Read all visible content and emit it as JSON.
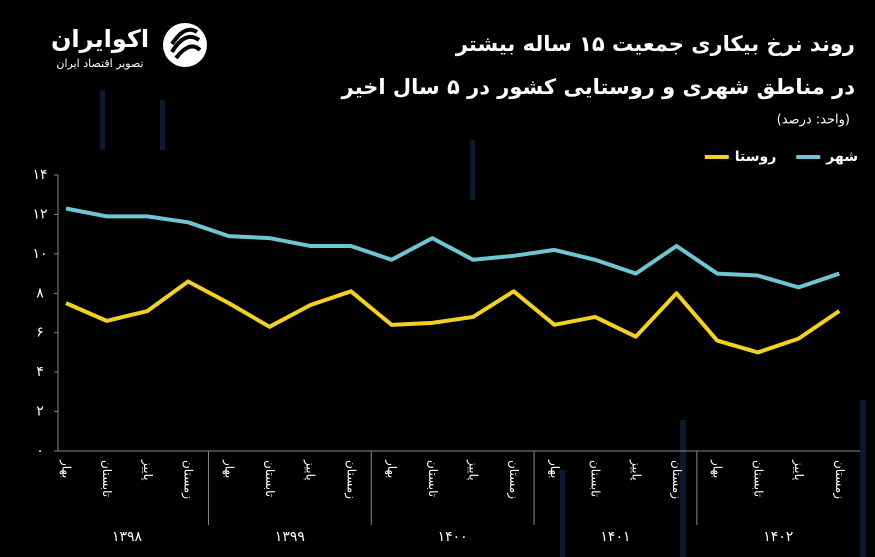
{
  "brand": {
    "name": "اکوایران",
    "tagline": "تصویر اقتصاد ایران"
  },
  "chart_data": {
    "type": "line",
    "title": [
      "روند نرخ بیکاری جمعیت ۱۵ ساله بیشتر",
      "در مناطق شهری و روستایی کشور در ۵ سال اخیر"
    ],
    "unit_note": "(واحد: درصد)",
    "categories": [
      "بهار",
      "تابستان",
      "پاییز",
      "زمستان",
      "بهار",
      "تابستان",
      "پاییز",
      "زمستان",
      "بهار",
      "تابستان",
      "پاییز",
      "زمستان",
      "بهار",
      "تابستان",
      "پاییز",
      "زمستان",
      "بهار",
      "تابستان",
      "پاییز",
      "زمستان"
    ],
    "year_groups": [
      "۱۳۹۸",
      "۱۳۹۹",
      "۱۴۰۰",
      "۱۴۰۱",
      "۱۴۰۲"
    ],
    "series": [
      {
        "name": "شهر",
        "color": "#6ec6d3",
        "values": [
          12.3,
          11.9,
          11.9,
          11.6,
          10.9,
          10.8,
          10.4,
          10.4,
          9.7,
          10.8,
          9.7,
          9.9,
          10.2,
          9.7,
          9.0,
          10.4,
          9.0,
          8.9,
          8.3,
          9.0
        ]
      },
      {
        "name": "روستا",
        "color": "#f2d024",
        "values": [
          7.5,
          6.6,
          7.1,
          8.6,
          7.5,
          6.3,
          7.4,
          8.1,
          6.4,
          6.5,
          6.8,
          8.1,
          6.4,
          6.8,
          5.8,
          8.0,
          5.6,
          5.0,
          5.7,
          7.1
        ]
      }
    ],
    "ylim": [
      0,
      14
    ],
    "yticks": [
      {
        "value": 0,
        "label": "۰"
      },
      {
        "value": 2,
        "label": "۲"
      },
      {
        "value": 4,
        "label": "۴"
      },
      {
        "value": 6,
        "label": "۶"
      },
      {
        "value": 8,
        "label": "۸"
      },
      {
        "value": 10,
        "label": "۱۰"
      },
      {
        "value": 12,
        "label": "۱۲"
      },
      {
        "value": 14,
        "label": "۱۴"
      }
    ],
    "grid": false,
    "legend": "top-right"
  }
}
